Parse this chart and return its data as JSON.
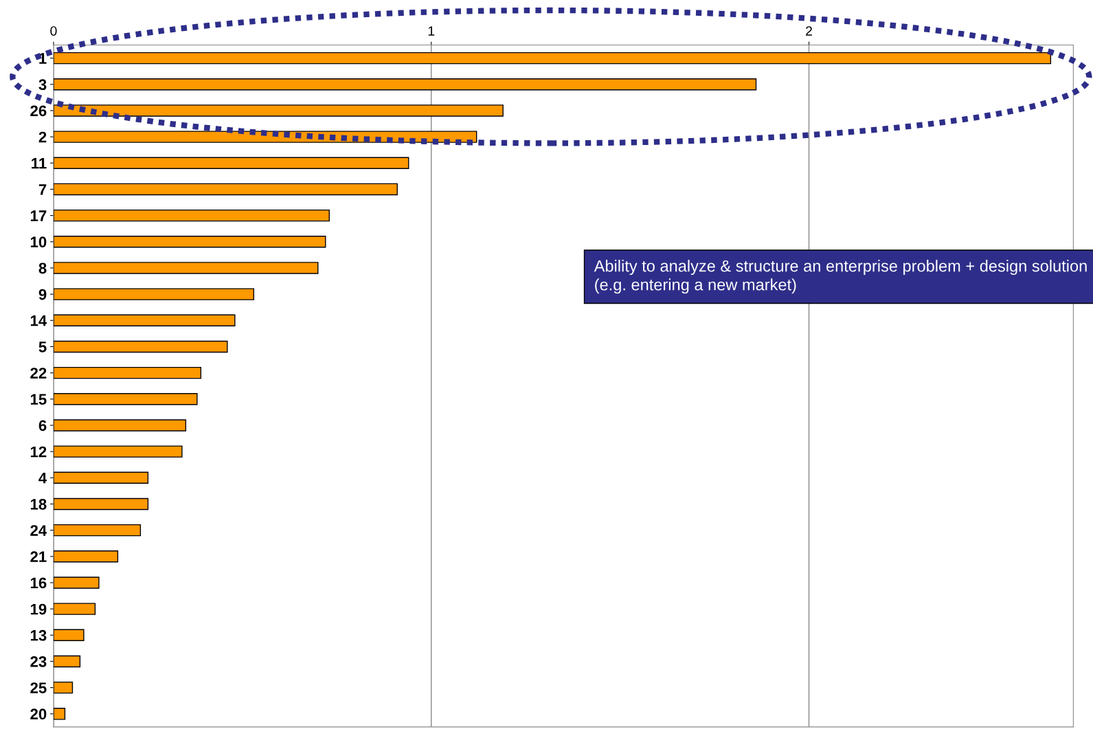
{
  "chart_data": {
    "type": "bar",
    "orientation": "horizontal",
    "categories": [
      "1",
      "3",
      "26",
      "2",
      "11",
      "7",
      "17",
      "10",
      "8",
      "9",
      "14",
      "5",
      "22",
      "15",
      "6",
      "12",
      "4",
      "18",
      "24",
      "21",
      "16",
      "19",
      "13",
      "23",
      "25",
      "20"
    ],
    "values": [
      2.64,
      1.86,
      1.19,
      1.12,
      0.94,
      0.91,
      0.73,
      0.72,
      0.7,
      0.53,
      0.48,
      0.46,
      0.39,
      0.38,
      0.35,
      0.34,
      0.25,
      0.25,
      0.23,
      0.17,
      0.12,
      0.11,
      0.08,
      0.07,
      0.05,
      0.03
    ],
    "color": "#ff9900",
    "xlim": [
      0,
      2.7
    ],
    "xticks": [
      0,
      1,
      2
    ],
    "grid": "x",
    "annotations": [
      "Ability to analyze & structure an enterprise problem + design solution (e.g. entering a new market)"
    ]
  }
}
